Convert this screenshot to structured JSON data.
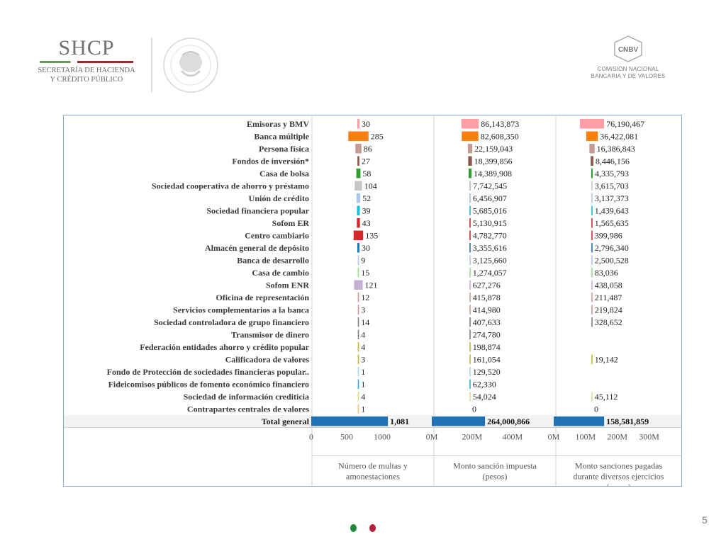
{
  "header": {
    "shcp_title": "SHCP",
    "shcp_line1": "SECRETARÍA DE HACIENDA",
    "shcp_line2": "Y CRÉDITO PÚBLICO",
    "seal_text": "ESTADOS UNIDOS MEXICANOS",
    "cnbv_abbr": "CNBV",
    "cnbv_line1": "COMISIÓN NACIONAL",
    "cnbv_line2": "BANCARIA Y DE VALORES"
  },
  "page_number": "5",
  "colors": {
    "accent_green": "#1d8a3b",
    "accent_red": "#b3203a",
    "total_bar": "#2171b5",
    "border": "#8fa9cc"
  },
  "chart_data": {
    "type": "bar",
    "orientation": "horizontal",
    "categories": [
      "Emisoras y BMV",
      "Banca múltiple",
      "Persona física",
      "Fondos de inversión*",
      "Casa de bolsa",
      "Sociedad cooperativa de ahorro y préstamo",
      "Unión de crédito",
      "Sociedad financiera popular",
      "Sofom ER",
      "Centro cambiario",
      "Almacén general de depósito",
      "Banca de desarrollo",
      "Casa de cambio",
      "Sofom ENR",
      "Oficina de representación",
      "Servicios complementarios a la banca",
      "Sociedad controladora de grupo financiero",
      "Transmisor de dinero",
      "Federación entidades ahorro y crédito popular",
      "Calificadora de valores",
      "Fondo de Protección de sociedades financieras popular..",
      "Fideicomisos públicos de fomento económico financiero",
      "Sociedad de información crediticia",
      "Contrapartes centrales de valores"
    ],
    "category_colors": [
      "#ff9da7",
      "#ff7f0e",
      "#c49c94",
      "#8c564b",
      "#2ca02c",
      "#c7c7c7",
      "#aec7e8",
      "#17becf",
      "#d62728",
      "#d62728",
      "#1f77b4",
      "#aec7e8",
      "#98df8a",
      "#c5b0d5",
      "#c49c94",
      "#c49c94",
      "#7f7f7f",
      "#7f7f7f",
      "#bcbd22",
      "#bcbd22",
      "#9edae5",
      "#17becf",
      "#dbdb8d",
      "#ffbb78"
    ],
    "total_label": "Total general",
    "series": [
      {
        "name": "Número de multas y amonestaciones",
        "values": [
          30,
          285,
          86,
          27,
          58,
          104,
          52,
          39,
          43,
          135,
          30,
          9,
          15,
          121,
          12,
          3,
          14,
          4,
          4,
          3,
          1,
          1,
          4,
          1
        ],
        "labels": [
          "30",
          "285",
          "86",
          "27",
          "58",
          "104",
          "52",
          "39",
          "43",
          "135",
          "30",
          "9",
          "15",
          "121",
          "12",
          "3",
          "14",
          "4",
          "4",
          "3",
          "1",
          "1",
          "4",
          "1"
        ],
        "total": 1081,
        "total_label": "1,081",
        "ticks": [
          0,
          500,
          1000
        ],
        "tick_labels": [
          "0",
          "500",
          "1000"
        ],
        "xlim": [
          0,
          1100
        ],
        "axis_title": [
          "Número de multas y",
          "amonestaciones"
        ]
      },
      {
        "name": "Monto sanción impuesta (pesos)",
        "values": [
          86143873,
          82608350,
          22159043,
          18399856,
          14389908,
          7742545,
          6456907,
          5685016,
          5130915,
          4782770,
          3355616,
          3125660,
          1274057,
          627276,
          415878,
          414980,
          407633,
          274780,
          198874,
          161054,
          129520,
          62330,
          54024,
          0
        ],
        "labels": [
          "86,143,873",
          "82,608,350",
          "22,159,043",
          "18,399,856",
          "14,389,908",
          "7,742,545",
          "6,456,907",
          "5,685,016",
          "5,130,915",
          "4,782,770",
          "3,355,616",
          "3,125,660",
          "1,274,057",
          "627,276",
          "415,878",
          "414,980",
          "407,633",
          "274,780",
          "198,874",
          "161,054",
          "129,520",
          "62,330",
          "54,024",
          "0"
        ],
        "total": 264000866,
        "total_label": "264,000,866",
        "ticks": [
          0,
          200000000,
          400000000
        ],
        "tick_labels": [
          "0M",
          "200M",
          "400M"
        ],
        "xlim": [
          0,
          450000000
        ],
        "axis_title": [
          "Monto sanción impuesta",
          "(pesos)"
        ]
      },
      {
        "name": "Monto sanciones pagadas durante diversos ejercicios (pesos)",
        "values": [
          76190467,
          36422081,
          16386843,
          8446156,
          4335793,
          3615703,
          3137373,
          1439643,
          1565635,
          399986,
          2796340,
          2500528,
          83036,
          438058,
          211487,
          219824,
          328652,
          0,
          0,
          19142,
          0,
          0,
          45112,
          0
        ],
        "labels": [
          "76,190,467",
          "36,422,081",
          "16,386,843",
          "8,446,156",
          "4,335,793",
          "3,615,703",
          "3,137,373",
          "1,439,643",
          "1,565,635",
          "399,986",
          "2,796,340",
          "2,500,528",
          "83,036",
          "438,058",
          "211,487",
          "219,824",
          "328,652",
          "",
          "",
          "19,142",
          "",
          "",
          "45,112",
          "0"
        ],
        "total": 158581859,
        "total_label": "158,581,859",
        "ticks": [
          0,
          100000000,
          200000000,
          300000000
        ],
        "tick_labels": [
          "0M",
          "100M",
          "200M",
          "300M"
        ],
        "xlim": [
          0,
          330000000
        ],
        "axis_title": [
          "Monto sanciones pagadas",
          "durante diversos ejercicios",
          "(pesos)"
        ]
      }
    ]
  }
}
